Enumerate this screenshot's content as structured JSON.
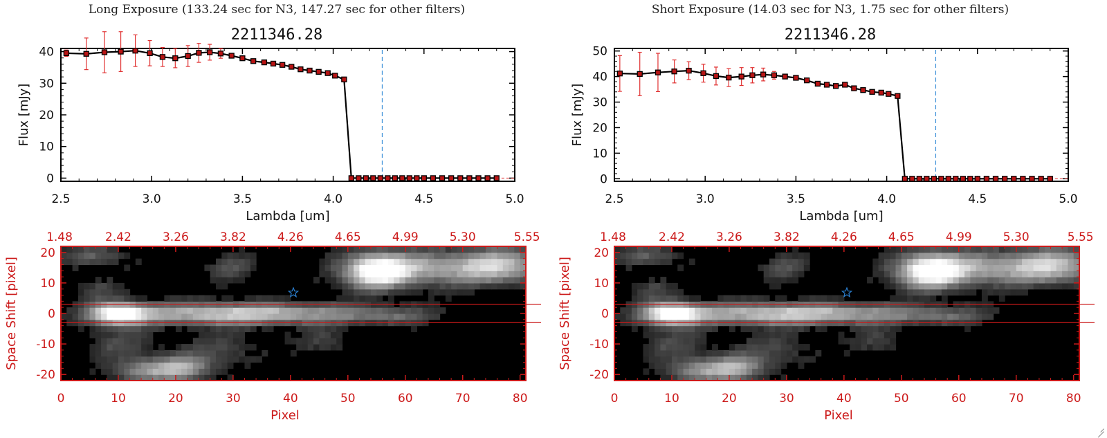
{
  "panels": [
    {
      "heading": "Long Exposure (133.24 sec for N3, 147.27 sec for other filters)",
      "object_id": "2211346.28"
    },
    {
      "heading": "Short Exposure (14.03 sec for N3, 1.75 sec for other filters)",
      "object_id": "2211346.28"
    }
  ],
  "colors": {
    "axis_black": "#000000",
    "image_axis_red": "#cc1a1a",
    "marker_fill": "#b81414",
    "errorbar": "#e03030",
    "cutoff_line": "#3a8fd8",
    "star": "#2a7fd0"
  },
  "chart_data": [
    {
      "type": "line",
      "title": "2211346.28",
      "xlabel": "Lambda [um]",
      "ylabel": "Flux [mJy]",
      "xlim": [
        2.5,
        5.0
      ],
      "ylim": [
        -1,
        41
      ],
      "xticks": [
        "2.5",
        "3.0",
        "3.5",
        "4.0",
        "4.5",
        "5.0"
      ],
      "yticks": [
        "0",
        "10",
        "20",
        "30",
        "40"
      ],
      "vline": 4.27,
      "x": [
        2.53,
        2.64,
        2.74,
        2.83,
        2.91,
        2.99,
        3.06,
        3.13,
        3.2,
        3.26,
        3.32,
        3.38,
        3.44,
        3.5,
        3.56,
        3.62,
        3.67,
        3.72,
        3.77,
        3.82,
        3.87,
        3.92,
        3.97,
        4.01,
        4.06,
        4.1,
        4.14,
        4.18,
        4.22,
        4.26,
        4.3,
        4.34,
        4.38,
        4.42,
        4.46,
        4.5,
        4.55,
        4.6,
        4.65,
        4.7,
        4.75,
        4.8,
        4.85,
        4.9
      ],
      "y": [
        39.5,
        39.3,
        39.8,
        40.0,
        40.3,
        39.5,
        38.3,
        37.9,
        38.6,
        39.6,
        39.8,
        39.4,
        38.7,
        37.9,
        37.0,
        36.6,
        36.2,
        35.8,
        35.2,
        34.4,
        34.0,
        33.6,
        33.2,
        32.4,
        31.2,
        0,
        0,
        0,
        0,
        0,
        0,
        0,
        0,
        0,
        0,
        0,
        0,
        0,
        0,
        0,
        0,
        0,
        0,
        0
      ],
      "yerr": [
        1.0,
        5.0,
        6.5,
        6.3,
        5.0,
        4.0,
        3.0,
        3.0,
        3.3,
        3.0,
        2.5,
        1.5,
        0,
        0,
        0,
        0,
        0,
        0,
        0,
        0,
        0,
        0,
        0,
        0,
        0,
        0,
        0,
        0,
        0,
        0,
        0,
        0,
        0,
        0,
        0,
        0,
        0,
        0,
        0,
        0,
        0,
        0,
        0,
        0
      ]
    },
    {
      "type": "line",
      "title": "2211346.28",
      "xlabel": "Lambda [um]",
      "ylabel": "Flux [mJy]",
      "xlim": [
        2.5,
        5.0
      ],
      "ylim": [
        -1,
        51
      ],
      "xticks": [
        "2.5",
        "3.0",
        "3.5",
        "4.0",
        "4.5",
        "5.0"
      ],
      "yticks": [
        "0",
        "10",
        "20",
        "30",
        "40",
        "50"
      ],
      "vline": 4.27,
      "x": [
        2.53,
        2.64,
        2.74,
        2.83,
        2.91,
        2.99,
        3.06,
        3.13,
        3.2,
        3.26,
        3.32,
        3.38,
        3.44,
        3.5,
        3.56,
        3.62,
        3.67,
        3.72,
        3.77,
        3.82,
        3.87,
        3.92,
        3.97,
        4.01,
        4.06,
        4.1,
        4.14,
        4.18,
        4.22,
        4.26,
        4.3,
        4.34,
        4.38,
        4.42,
        4.46,
        4.5,
        4.55,
        4.6,
        4.65,
        4.7,
        4.75,
        4.8,
        4.85,
        4.9
      ],
      "y": [
        41.2,
        41.0,
        41.6,
        42.0,
        42.3,
        41.3,
        40.2,
        39.6,
        40.0,
        40.5,
        40.8,
        40.5,
        40.0,
        39.5,
        38.5,
        37.2,
        36.8,
        36.3,
        36.8,
        35.4,
        34.7,
        34.0,
        33.7,
        33.2,
        32.4,
        0,
        0,
        0,
        0,
        0,
        0,
        0,
        0,
        0,
        0,
        0,
        0,
        0,
        0,
        0,
        0,
        0,
        0,
        0
      ],
      "yerr": [
        7.0,
        8.5,
        7.5,
        4.5,
        3.5,
        3.5,
        3.5,
        3.5,
        3.5,
        3.0,
        2.5,
        1.5,
        0,
        0,
        0,
        0,
        0,
        0,
        0,
        0,
        0,
        0,
        0,
        0,
        0,
        0,
        0,
        0,
        0,
        0,
        0,
        0,
        0,
        0,
        0,
        0,
        0,
        0,
        0,
        0,
        0,
        0,
        0,
        0
      ]
    },
    {
      "type": "heatmap",
      "xlabel": "Pixel",
      "ylabel": "Space Shift [pixel]",
      "xlim": [
        0,
        81
      ],
      "ylim": [
        -22,
        22
      ],
      "xticks": [
        "0",
        "10",
        "20",
        "30",
        "40",
        "50",
        "60",
        "70",
        "80"
      ],
      "yticks": [
        "-20",
        "-10",
        "0",
        "10",
        "20"
      ],
      "top_ticks": [
        "1.48",
        "2.42",
        "3.26",
        "3.82",
        "4.26",
        "4.65",
        "4.99",
        "5.30",
        "5.55"
      ],
      "extraction_band": [
        -3,
        3
      ],
      "star_marker": [
        40.5,
        6.8
      ]
    },
    {
      "type": "heatmap",
      "xlabel": "Pixel",
      "ylabel": "Space Shift [pixel]",
      "xlim": [
        0,
        81
      ],
      "ylim": [
        -22,
        22
      ],
      "xticks": [
        "0",
        "10",
        "20",
        "30",
        "40",
        "50",
        "60",
        "70",
        "80"
      ],
      "yticks": [
        "-20",
        "-10",
        "0",
        "10",
        "20"
      ],
      "top_ticks": [
        "1.48",
        "2.42",
        "3.26",
        "3.82",
        "4.26",
        "4.65",
        "4.99",
        "5.30",
        "5.55"
      ],
      "extraction_band": [
        -3,
        3
      ],
      "star_marker": [
        40.5,
        6.8
      ]
    }
  ]
}
